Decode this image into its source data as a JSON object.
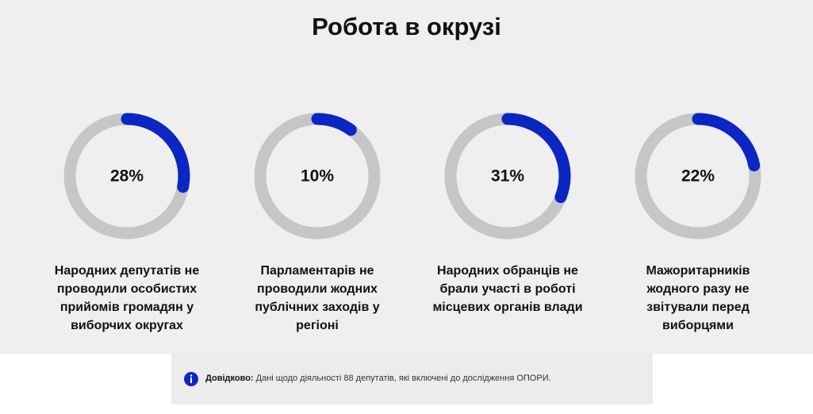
{
  "chart_data": {
    "type": "gauge",
    "title": "Робота в окрузі",
    "categories": [
      "Народних депутатів не проводили особистих прийомів громадян у виборчих округах",
      "Парламентарів не проводили жодних публічних заходів у регіоні",
      "Народних обранців не брали участі в роботі місцевих органів влади",
      "Мажоритарників жодного разу не звітували перед виборцями"
    ],
    "values": [
      28,
      10,
      31,
      22
    ],
    "value_labels": [
      "28%",
      "10%",
      "31%",
      "22%"
    ],
    "ylim": [
      0,
      100
    ],
    "color": "#0b26c2",
    "track_color": "#c6c6c6"
  },
  "note": {
    "label": "Довідково:",
    "text": "Дані щодо діяльності 88 депутатів, які включені до дослідження ОПОРИ."
  }
}
